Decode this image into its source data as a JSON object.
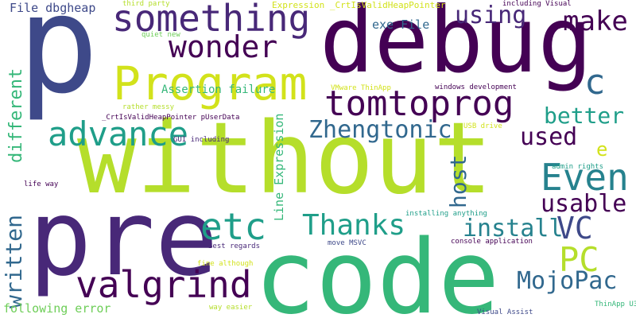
{
  "wordcloud": {
    "palette": {
      "dark_purple": "#440154",
      "purple": "#482878",
      "indigo": "#3e4989",
      "blue": "#31688e",
      "teal_blue": "#26828e",
      "teal": "#1f9e89",
      "green": "#35b779",
      "light_green": "#6ece58",
      "yellow_green": "#b5de2b",
      "yellow": "#d2e21b"
    },
    "words": [
      {
        "text": "without",
        "color": "#b5de2b"
      },
      {
        "text": "p",
        "color": "#3e4989"
      },
      {
        "text": "debug",
        "color": "#440154"
      },
      {
        "text": "code",
        "color": "#35b779"
      },
      {
        "text": "pre",
        "color": "#482878"
      },
      {
        "text": "Program",
        "color": "#d2e21b"
      },
      {
        "text": "something",
        "color": "#482878"
      },
      {
        "text": "tomtoprog",
        "color": "#440154"
      },
      {
        "text": "valgrind",
        "color": "#440154"
      },
      {
        "text": "advance",
        "color": "#1f9e89"
      },
      {
        "text": "wonder",
        "color": "#440154"
      },
      {
        "text": "Even",
        "color": "#26828e"
      },
      {
        "text": "etc",
        "color": "#1f9e89"
      },
      {
        "text": "Thanks",
        "color": "#1f9e89"
      },
      {
        "text": "Zhengtonic",
        "color": "#31688e"
      },
      {
        "text": "make",
        "color": "#440154"
      },
      {
        "text": "c",
        "color": "#31688e"
      },
      {
        "text": "VC",
        "color": "#3e4989"
      },
      {
        "text": "PC",
        "color": "#b5de2b"
      },
      {
        "text": "MojoPac",
        "color": "#31688e"
      },
      {
        "text": "usable",
        "color": "#440154"
      },
      {
        "text": "install",
        "color": "#26828e"
      },
      {
        "text": "better",
        "color": "#1f9e89"
      },
      {
        "text": "used",
        "color": "#440154"
      },
      {
        "text": "using",
        "color": "#482878"
      },
      {
        "text": "written",
        "color": "#31688e"
      },
      {
        "text": "different",
        "color": "#35b779"
      },
      {
        "text": "host",
        "color": "#31688e"
      },
      {
        "text": "e",
        "color": "#d2e21b"
      },
      {
        "text": "exe File",
        "color": "#31688e"
      },
      {
        "text": "Assertion failure",
        "color": "#35b779"
      },
      {
        "text": "File dbgheap",
        "color": "#3e4989"
      },
      {
        "text": "following error",
        "color": "#6ece58"
      },
      {
        "text": "Line Expression",
        "color": "#35b779"
      },
      {
        "text": "Expression _CrtIsValidHeapPointer",
        "color": "#d2e21b"
      },
      {
        "text": "_CrtIsValidHeapPointer pUserData",
        "color": "#440154"
      },
      {
        "text": "third party",
        "color": "#b5de2b"
      },
      {
        "text": "quiet new",
        "color": "#6ece58"
      },
      {
        "text": "rather messy",
        "color": "#b5de2b"
      },
      {
        "text": "GUI including",
        "color": "#482878"
      },
      {
        "text": "life way",
        "color": "#440154"
      },
      {
        "text": "including Visual",
        "color": "#440154"
      },
      {
        "text": "windows development",
        "color": "#440154"
      },
      {
        "text": "VMware ThinApp",
        "color": "#d2e21b"
      },
      {
        "text": "USB drive",
        "color": "#d2e21b"
      },
      {
        "text": "admin rights",
        "color": "#1f9e89"
      },
      {
        "text": "installing anything",
        "color": "#1f9e89"
      },
      {
        "text": "Best regards",
        "color": "#482878"
      },
      {
        "text": "move MSVC",
        "color": "#3e4989"
      },
      {
        "text": "console application",
        "color": "#440154"
      },
      {
        "text": "fine although",
        "color": "#d2e21b"
      },
      {
        "text": "way easier",
        "color": "#b5de2b"
      },
      {
        "text": "Visual Assist",
        "color": "#3e4989"
      },
      {
        "text": "ThinApp U3",
        "color": "#35b779"
      }
    ]
  }
}
